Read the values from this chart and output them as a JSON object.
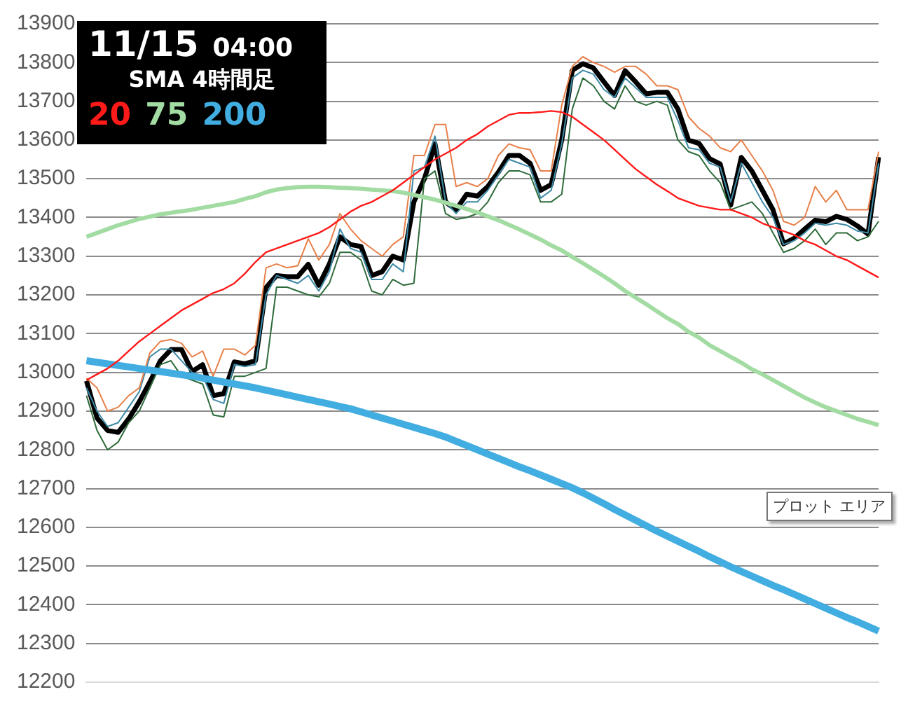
{
  "chart_data": {
    "type": "line",
    "title": "11/15 04:00",
    "subtitle": "SMA 4時間足",
    "categories": [
      null,
      null,
      null,
      null,
      null,
      null,
      null,
      null,
      null,
      null,
      null,
      null,
      null,
      null,
      null,
      null,
      null,
      null,
      null,
      null,
      null,
      null,
      null,
      null,
      null,
      null,
      null,
      null,
      null,
      null,
      null,
      null,
      null,
      null,
      null,
      null,
      null,
      null,
      null,
      null,
      null,
      null,
      null,
      null,
      null,
      null,
      null,
      null,
      null,
      null,
      null,
      null,
      null,
      null,
      null,
      null,
      null,
      null,
      null,
      null,
      null,
      null,
      null,
      null,
      null,
      null,
      null,
      null,
      null,
      null,
      null,
      null,
      null,
      null,
      null,
      null
    ],
    "ylim": [
      12200,
      13900
    ],
    "yticks": [
      12200,
      12300,
      12400,
      12500,
      12600,
      12700,
      12800,
      12900,
      13000,
      13100,
      13200,
      13300,
      13400,
      13500,
      13600,
      13700,
      13800,
      13900
    ],
    "grid": "y",
    "legend": "top left",
    "marker": "none",
    "line_style": "solid",
    "tick_labels": "y",
    "annotations": [
      "プロット エリア"
    ],
    "series": [
      {
        "name": "20",
        "color": "#ff1a1a",
        "values": [
          12980,
          12995,
          13010,
          13030,
          13055,
          13080,
          13100,
          13120,
          13140,
          13160,
          13175,
          13190,
          13205,
          13215,
          13230,
          13255,
          13285,
          13310,
          13320,
          13330,
          13340,
          13350,
          13360,
          13375,
          13395,
          13415,
          13430,
          13440,
          13455,
          13470,
          13490,
          13510,
          13530,
          13550,
          13565,
          13580,
          13600,
          13615,
          13635,
          13650,
          13665,
          13670,
          13670,
          13672,
          13675,
          13672,
          13660,
          13640,
          13620,
          13600,
          13575,
          13550,
          13525,
          13505,
          13485,
          13468,
          13450,
          13440,
          13430,
          13425,
          13420,
          13420,
          13410,
          13400,
          13385,
          13375,
          13365,
          13355,
          13340,
          13330,
          13315,
          13300,
          13290,
          13275,
          13260,
          13245
        ]
      },
      {
        "name": "75",
        "color": "#a3dca3",
        "values": [
          13350,
          13360,
          13370,
          13380,
          13388,
          13396,
          13402,
          13408,
          13412,
          13416,
          13420,
          13425,
          13430,
          13435,
          13440,
          13448,
          13455,
          13465,
          13472,
          13476,
          13478,
          13479,
          13479,
          13478,
          13477,
          13476,
          13474,
          13472,
          13470,
          13468,
          13464,
          13458,
          13452,
          13446,
          13438,
          13430,
          13422,
          13413,
          13403,
          13393,
          13381,
          13369,
          13356,
          13343,
          13328,
          13315,
          13298,
          13282,
          13265,
          13248,
          13230,
          13210,
          13193,
          13176,
          13158,
          13140,
          13125,
          13105,
          13090,
          13070,
          13055,
          13040,
          13025,
          13008,
          12995,
          12980,
          12965,
          12950,
          12935,
          12922,
          12910,
          12900,
          12890,
          12880,
          12872,
          12864
        ]
      },
      {
        "name": "200",
        "color": "#41ade0",
        "values": [
          13030,
          13026,
          13022,
          13018,
          13014,
          13010,
          13006,
          13002,
          12998,
          12994,
          12990,
          12985,
          12980,
          12975,
          12970,
          12965,
          12960,
          12954,
          12948,
          12942,
          12936,
          12930,
          12924,
          12918,
          12912,
          12906,
          12898,
          12890,
          12882,
          12874,
          12866,
          12858,
          12850,
          12842,
          12833,
          12822,
          12811,
          12800,
          12789,
          12778,
          12767,
          12756,
          12746,
          12735,
          12724,
          12713,
          12702,
          12689,
          12675,
          12661,
          12646,
          12632,
          12618,
          12604,
          12590,
          12577,
          12564,
          12551,
          12538,
          12524,
          12511,
          12498,
          12486,
          12474,
          12462,
          12450,
          12439,
          12427,
          12415,
          12403,
          12391,
          12379,
          12367,
          12356,
          12344,
          12332
        ]
      },
      {
        "color": "#e8804a",
        "values": [
          12985,
          12960,
          12900,
          12910,
          12940,
          12960,
          13050,
          13080,
          13085,
          13075,
          13040,
          13055,
          12990,
          13060,
          13060,
          13045,
          13070,
          13270,
          13280,
          13270,
          13275,
          13345,
          13290,
          13330,
          13410,
          13370,
          13340,
          13320,
          13300,
          13330,
          13350,
          13560,
          13560,
          13640,
          13640,
          13480,
          13490,
          13480,
          13500,
          13560,
          13590,
          13580,
          13575,
          13520,
          13520,
          13690,
          13790,
          13815,
          13800,
          13790,
          13775,
          13790,
          13790,
          13770,
          13740,
          13740,
          13730,
          13660,
          13630,
          13610,
          13580,
          13570,
          13600,
          13560,
          13520,
          13470,
          13390,
          13380,
          13400,
          13480,
          13440,
          13470,
          13420,
          13420,
          13420,
          13570
        ]
      },
      {
        "color": "#2e6b3a",
        "values": [
          12940,
          12850,
          12800,
          12820,
          12870,
          12900,
          12960,
          13020,
          13030,
          12990,
          12980,
          12970,
          12890,
          12885,
          12990,
          12990,
          13000,
          13010,
          13220,
          13220,
          13210,
          13200,
          13195,
          13230,
          13310,
          13310,
          13290,
          13210,
          13200,
          13240,
          13225,
          13230,
          13500,
          13520,
          13410,
          13395,
          13400,
          13410,
          13440,
          13490,
          13520,
          13520,
          13510,
          13440,
          13440,
          13460,
          13680,
          13760,
          13740,
          13700,
          13680,
          13740,
          13700,
          13690,
          13700,
          13690,
          13600,
          13570,
          13560,
          13520,
          13490,
          13420,
          13430,
          13440,
          13410,
          13360,
          13310,
          13320,
          13340,
          13370,
          13330,
          13360,
          13360,
          13340,
          13350,
          13390
        ]
      },
      {
        "color": "#3d8aa6",
        "values": [
          12960,
          12900,
          12860,
          12870,
          12910,
          12950,
          13040,
          13060,
          13060,
          13030,
          13000,
          12990,
          12930,
          12920,
          13020,
          13015,
          13020,
          13200,
          13250,
          13240,
          13230,
          13250,
          13210,
          13260,
          13370,
          13320,
          13310,
          13240,
          13240,
          13280,
          13260,
          13520,
          13530,
          13610,
          13440,
          13410,
          13440,
          13440,
          13470,
          13510,
          13550,
          13540,
          13530,
          13450,
          13470,
          13590,
          13760,
          13780,
          13770,
          13730,
          13710,
          13760,
          13735,
          13710,
          13710,
          13710,
          13650,
          13580,
          13575,
          13540,
          13530,
          13440,
          13540,
          13490,
          13440,
          13400,
          13330,
          13340,
          13360,
          13385,
          13380,
          13385,
          13380,
          13365,
          13360,
          13540
        ]
      },
      {
        "color": "#000000",
        "values": [
          12978,
          12882,
          12850,
          12845,
          12880,
          12924,
          12975,
          13030,
          13059,
          13059,
          13002,
          13020,
          12940,
          12945,
          13027,
          13022,
          13030,
          13219,
          13250,
          13247,
          13247,
          13279,
          13225,
          13280,
          13350,
          13330,
          13325,
          13250,
          13260,
          13300,
          13290,
          13440,
          13500,
          13590,
          13440,
          13420,
          13460,
          13455,
          13480,
          13517,
          13560,
          13560,
          13540,
          13470,
          13485,
          13600,
          13780,
          13797,
          13786,
          13750,
          13715,
          13779,
          13750,
          13719,
          13723,
          13723,
          13680,
          13600,
          13591,
          13552,
          13538,
          13432,
          13555,
          13520,
          13470,
          13420,
          13332,
          13346,
          13370,
          13393,
          13389,
          13403,
          13395,
          13378,
          13357,
          13556
        ]
      }
    ]
  }
}
